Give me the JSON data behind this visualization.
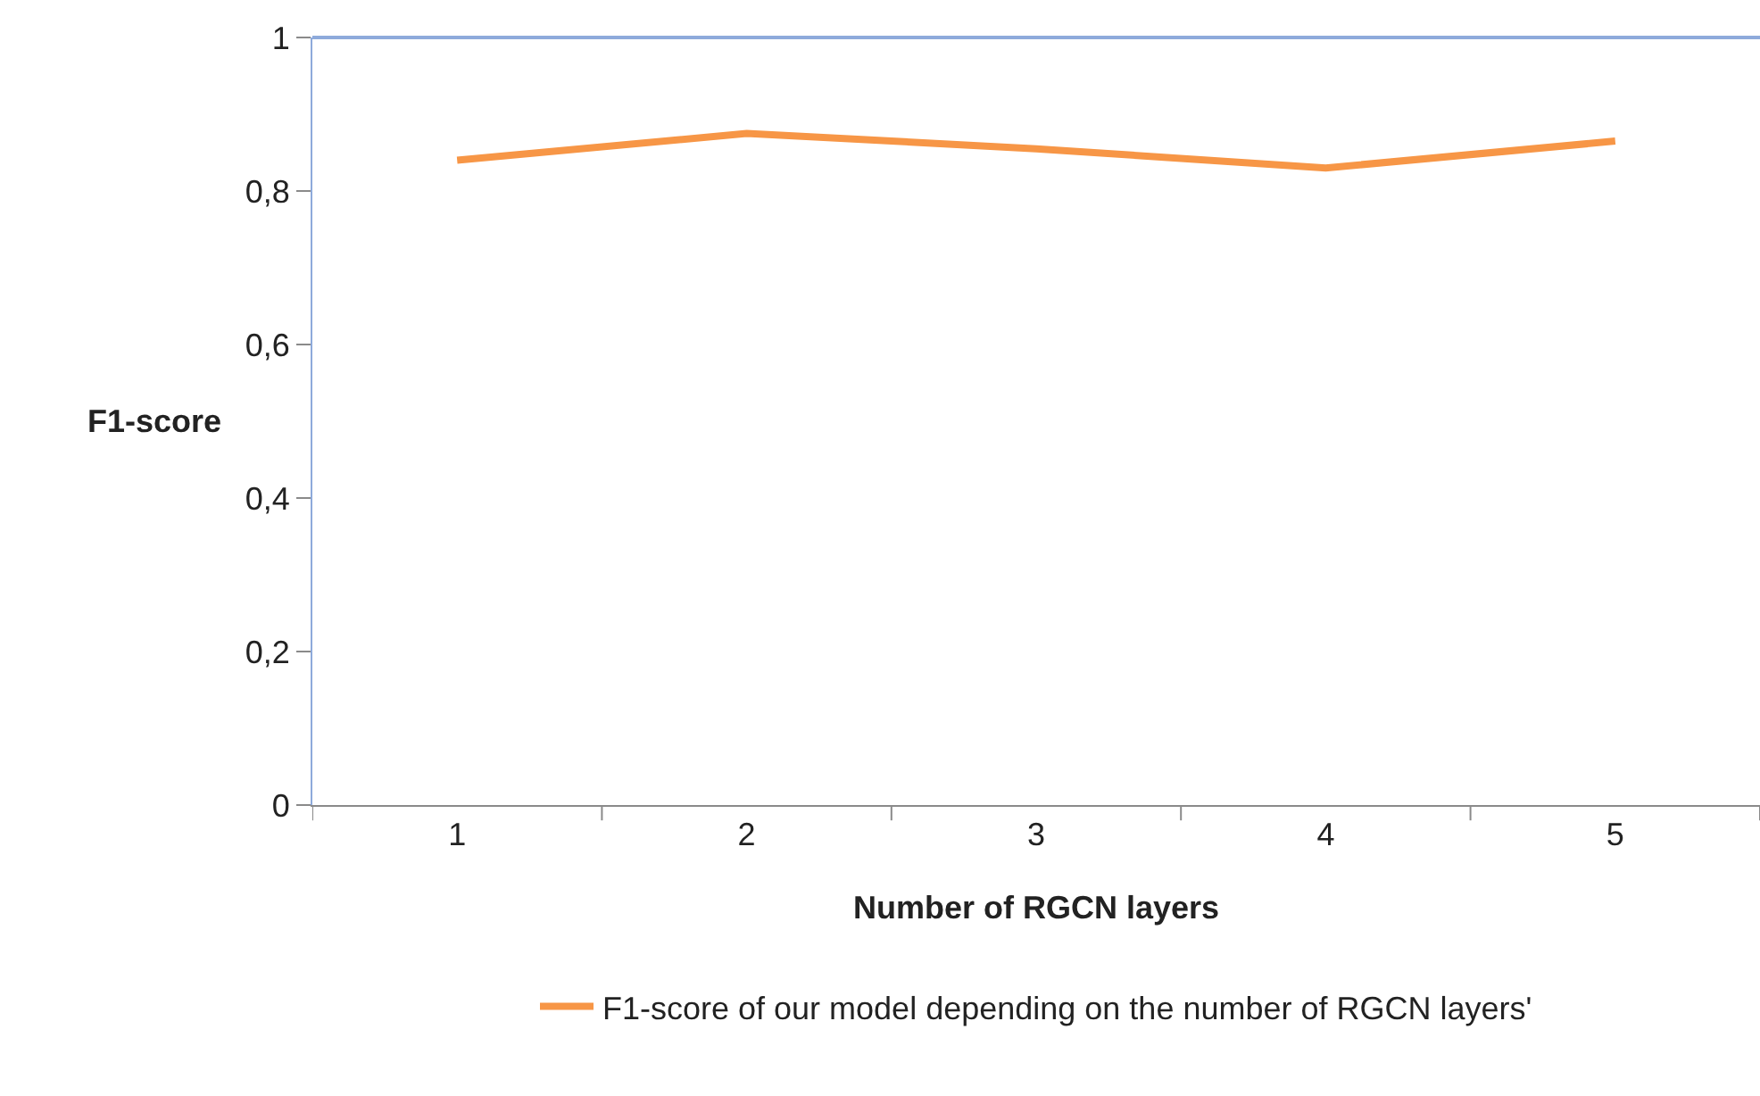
{
  "chart_data": {
    "type": "line",
    "xlabel": "Number of RGCN layers",
    "ylabel": "F1-score",
    "categories": [
      "1",
      "2",
      "3",
      "4",
      "5"
    ],
    "series": [
      {
        "name": "F1-score of our model depending on the number of RGCN layers'",
        "color": "#f79646",
        "values": [
          0.84,
          0.875,
          0.855,
          0.83,
          0.865
        ]
      }
    ],
    "ylim": [
      0,
      1
    ],
    "yticks": [
      0,
      {
        "value": 0.2,
        "label": "0,2"
      },
      {
        "value": 0.4,
        "label": "0,4"
      },
      {
        "value": 0.6,
        "label": "0,6"
      },
      {
        "value": 0.8,
        "label": "0,8"
      },
      1
    ],
    "grid": false,
    "legend": "bottom",
    "marker": "none",
    "line_style": "solid"
  }
}
